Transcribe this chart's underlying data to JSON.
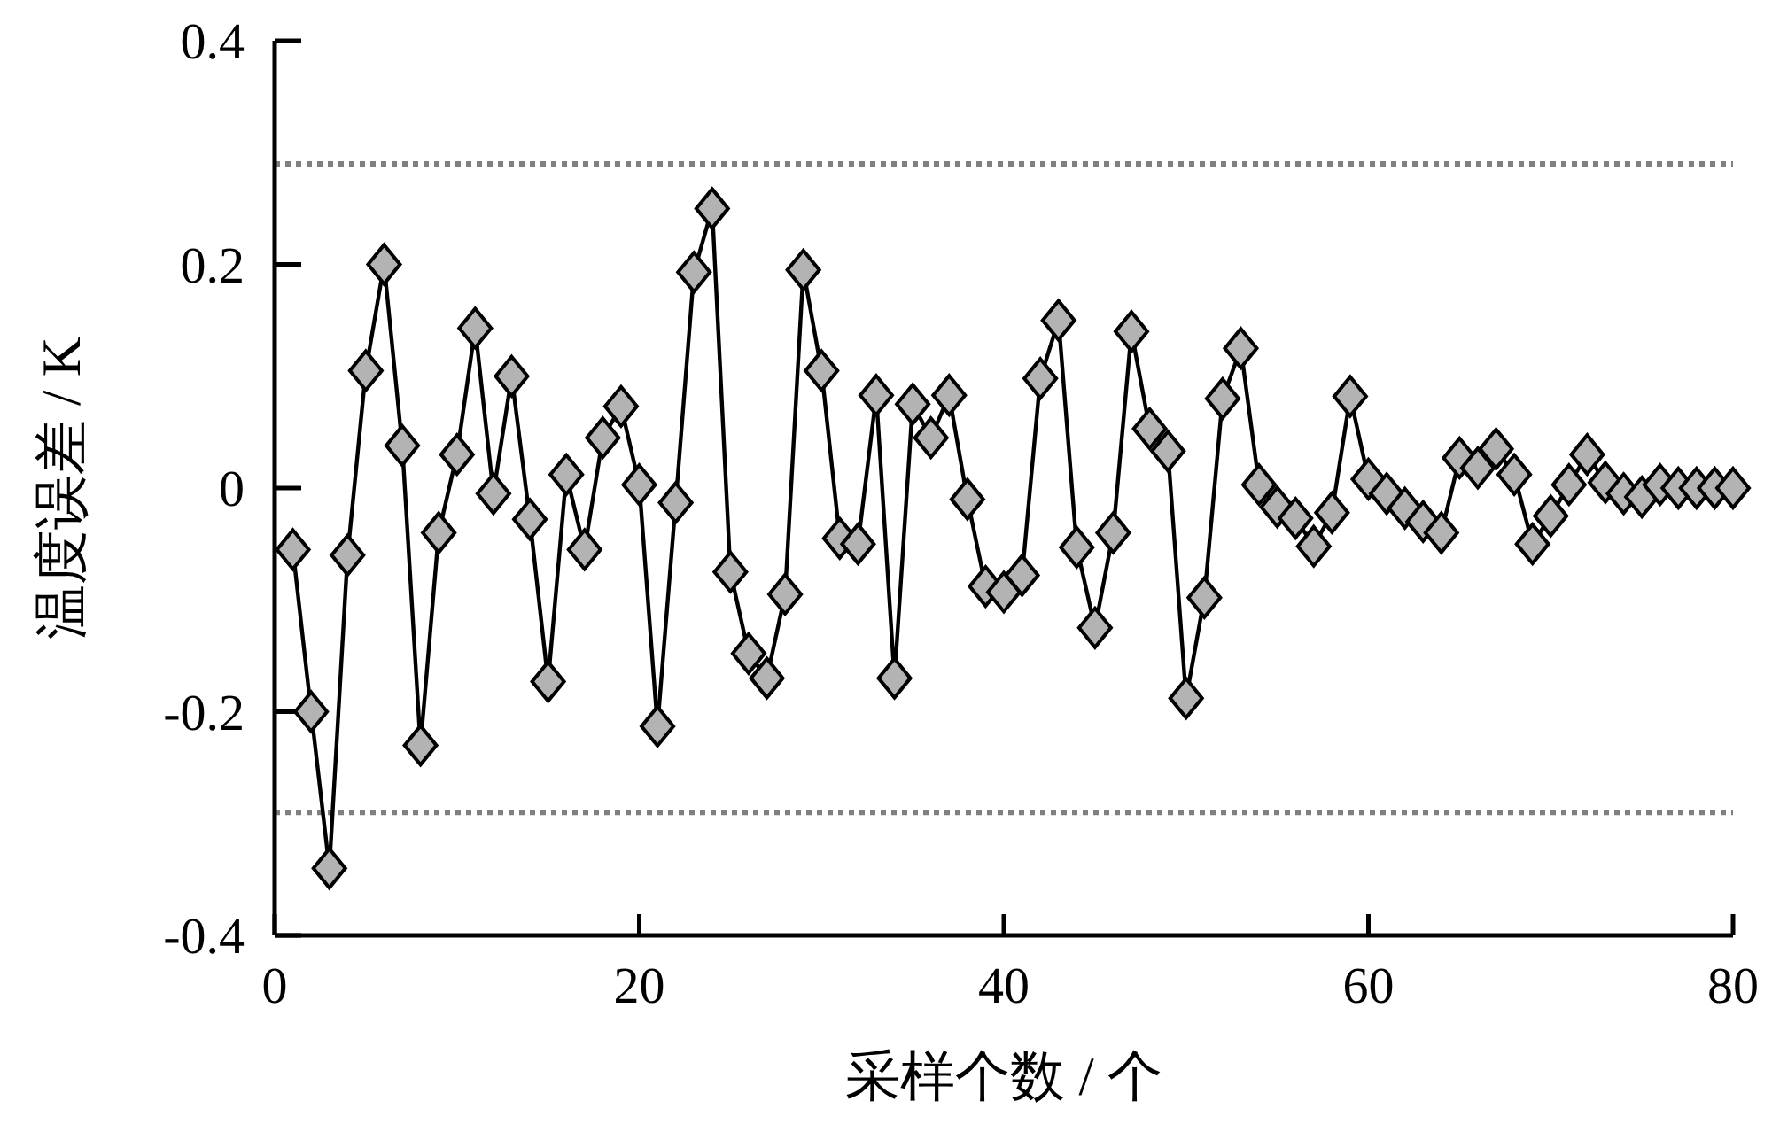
{
  "chart_data": {
    "type": "line",
    "xlabel": "采样个数 / 个",
    "ylabel": "温度误差 / K",
    "x": [
      1,
      2,
      3,
      4,
      5,
      6,
      7,
      8,
      9,
      10,
      11,
      12,
      13,
      14,
      15,
      16,
      17,
      18,
      19,
      20,
      21,
      22,
      23,
      24,
      25,
      26,
      27,
      28,
      29,
      30,
      31,
      32,
      33,
      34,
      35,
      36,
      37,
      38,
      39,
      40,
      41,
      42,
      43,
      44,
      45,
      46,
      47,
      48,
      49,
      50,
      51,
      52,
      53,
      54,
      55,
      56,
      57,
      58,
      59,
      60,
      61,
      62,
      63,
      64,
      65,
      66,
      67,
      68,
      69,
      70,
      71,
      72,
      73,
      74,
      75,
      76,
      77,
      78,
      79,
      80
    ],
    "series": [
      {
        "color": "#b3b3b3",
        "values": [
          -0.055,
          -0.2,
          -0.34,
          -0.06,
          0.105,
          0.2,
          0.038,
          -0.23,
          -0.04,
          0.03,
          0.143,
          -0.005,
          0.1,
          -0.028,
          -0.173,
          0.012,
          -0.055,
          0.045,
          0.073,
          0.003,
          -0.213,
          -0.013,
          0.193,
          0.25,
          -0.075,
          -0.148,
          -0.17,
          -0.095,
          0.195,
          0.105,
          -0.045,
          -0.05,
          0.083,
          -0.17,
          0.075,
          0.045,
          0.083,
          -0.01,
          -0.088,
          -0.093,
          -0.078,
          0.098,
          0.15,
          -0.053,
          -0.125,
          -0.04,
          0.14,
          0.053,
          0.033,
          -0.188,
          -0.098,
          0.08,
          0.125,
          0.003,
          -0.017,
          -0.027,
          -0.052,
          -0.022,
          0.082,
          0.008,
          -0.005,
          -0.018,
          -0.03,
          -0.04,
          0.027,
          0.018,
          0.035,
          0.012,
          -0.05,
          -0.025,
          0.003,
          0.03,
          0.005,
          -0.005,
          -0.008,
          0.003,
          0,
          0,
          0,
          0
        ]
      }
    ],
    "xlim": [
      0,
      80
    ],
    "xticks": [
      0,
      20,
      40,
      60,
      80
    ],
    "ylim": [
      -0.4,
      0.4
    ],
    "yticks": [
      -0.4,
      -0.2,
      0,
      0.2,
      0.4
    ],
    "ref_lines": [
      {
        "axis": "y",
        "value": 0.29,
        "color": "#808080",
        "line_style": "dotted"
      },
      {
        "axis": "y",
        "value": -0.29,
        "color": "#808080",
        "line_style": "dotted"
      }
    ],
    "marker": "diamond",
    "line_style": "solid",
    "grid": false
  }
}
